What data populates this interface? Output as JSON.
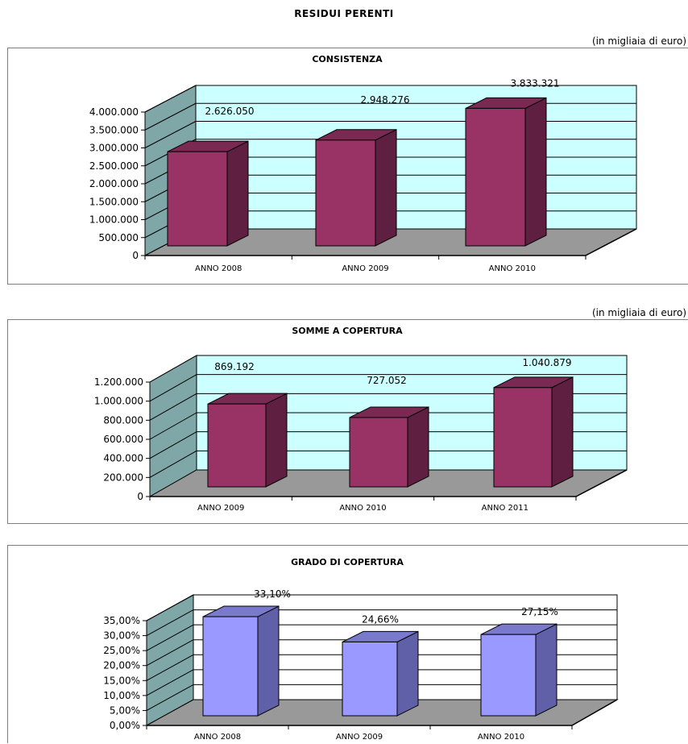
{
  "page": {
    "title": "RESIDUI PERENTI",
    "unit_note": "(in migliaia di euro)"
  },
  "colors": {
    "wall": "#ccffff",
    "side_wall": "#7fa7a7",
    "floor": "#999999",
    "bar_purple_front": "#993366",
    "bar_purple_top": "#7a2952",
    "bar_purple_side": "#5e1f40",
    "bar_blue_front": "#9999ff",
    "bar_blue_top": "#7a7acc",
    "bar_blue_side": "#6060a8"
  },
  "chart_data": [
    {
      "type": "bar",
      "title": "CONSISTENZA",
      "unit_note": "(in migliaia di euro)",
      "categories": [
        "ANNO 2008",
        "ANNO 2009",
        "ANNO 2010"
      ],
      "values": [
        2626050,
        2948276,
        3833321
      ],
      "data_labels": [
        "2.626.050",
        "2.948.276",
        "3.833.321"
      ],
      "ylim": [
        0,
        4000000
      ],
      "yticks": [
        0,
        500000,
        1000000,
        1500000,
        2000000,
        2500000,
        3000000,
        3500000,
        4000000
      ],
      "ytick_labels": [
        "0",
        "500.000",
        "1.000.000",
        "1.500.000",
        "2.000.000",
        "2.500.000",
        "3.000.000",
        "3.500.000",
        "4.000.000"
      ],
      "wall_color": "#ccffff",
      "bar_color": "#993366",
      "grid": true
    },
    {
      "type": "bar",
      "title": "SOMME A COPERTURA",
      "unit_note": "(in migliaia di euro)",
      "categories": [
        "ANNO 2009",
        "ANNO 2010",
        "ANNO 2011"
      ],
      "values": [
        869192,
        727052,
        1040879
      ],
      "data_labels": [
        "869.192",
        "727.052",
        "1.040.879"
      ],
      "ylim": [
        0,
        1200000
      ],
      "yticks": [
        0,
        200000,
        400000,
        600000,
        800000,
        1000000,
        1200000
      ],
      "ytick_labels": [
        "0",
        "200.000",
        "400.000",
        "600.000",
        "800.000",
        "1.000.000",
        "1.200.000"
      ],
      "wall_color": "#ccffff",
      "bar_color": "#993366",
      "grid": true
    },
    {
      "type": "bar",
      "title": "GRADO DI COPERTURA",
      "categories": [
        "ANNO 2008",
        "ANNO 2009",
        "ANNO 2010"
      ],
      "values": [
        33.1,
        24.66,
        27.15
      ],
      "data_labels": [
        "33,10%",
        "24,66%",
        "27,15%"
      ],
      "ylim": [
        0,
        35
      ],
      "yticks": [
        0,
        5,
        10,
        15,
        20,
        25,
        30,
        35
      ],
      "ytick_labels": [
        "0,00%",
        "5,00%",
        "10,00%",
        "15,00%",
        "20,00%",
        "25,00%",
        "30,00%",
        "35,00%"
      ],
      "wall_color": "#ffffff",
      "bar_color": "#9999ff",
      "grid": true
    }
  ]
}
